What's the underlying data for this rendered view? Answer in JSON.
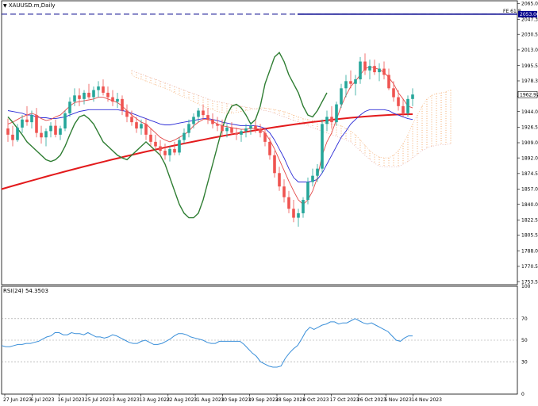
{
  "window": {
    "symbol_title": "XAUUSD.m,Daily",
    "rsi_title": "RSI(24) 54.3503"
  },
  "chart_data": {
    "type": "candlestick",
    "symbol": "XAUUSD.m",
    "timeframe": "Daily",
    "price_axis": {
      "range": [
        1750,
        2068
      ],
      "ticks": [
        "2065.00",
        "2047.30",
        "2030.50",
        "2013.00",
        "1995.50",
        "1978.30",
        "1961.00",
        "1944.00",
        "1926.50",
        "1909.00",
        "1892.00",
        "1874.50",
        "1857.00",
        "1840.00",
        "1822.50",
        "1805.50",
        "1788.00",
        "1770.50",
        "1753.50"
      ]
    },
    "date_axis": {
      "ticks": [
        "27 Jun 2023",
        "6 Jul 2023",
        "16 Jul 2023",
        "25 Jul 2023",
        "3 Aug 2023",
        "13 Aug 2023",
        "22 Aug 2023",
        "31 Aug 2023",
        "10 Sep 2023",
        "19 Sep 2023",
        "28 Sep 2023",
        "8 Oct 2023",
        "17 Oct 2023",
        "26 Oct 2023",
        "5 Nov 2023",
        "14 Nov 2023"
      ]
    },
    "current_price": "1962.97",
    "fibo_label": "FE 61.8",
    "fibo_price": "2053.00",
    "fibo_value": 2053.0,
    "candles": [
      [
        1925,
        1936,
        1910,
        1918
      ],
      [
        1918,
        1928,
        1905,
        1912
      ],
      [
        1912,
        1930,
        1910,
        1926
      ],
      [
        1926,
        1940,
        1920,
        1935
      ],
      [
        1935,
        1950,
        1928,
        1932
      ],
      [
        1932,
        1945,
        1925,
        1940
      ],
      [
        1940,
        1948,
        1915,
        1920
      ],
      [
        1920,
        1928,
        1908,
        1915
      ],
      [
        1915,
        1925,
        1905,
        1922
      ],
      [
        1922,
        1932,
        1915,
        1928
      ],
      [
        1928,
        1935,
        1915,
        1918
      ],
      [
        1918,
        1928,
        1912,
        1925
      ],
      [
        1925,
        1945,
        1922,
        1942
      ],
      [
        1942,
        1960,
        1938,
        1955
      ],
      [
        1955,
        1970,
        1950,
        1962
      ],
      [
        1962,
        1970,
        1950,
        1958
      ],
      [
        1958,
        1968,
        1952,
        1965
      ],
      [
        1965,
        1975,
        1958,
        1960
      ],
      [
        1960,
        1972,
        1955,
        1968
      ],
      [
        1968,
        1978,
        1960,
        1972
      ],
      [
        1972,
        1980,
        1962,
        1965
      ],
      [
        1965,
        1972,
        1955,
        1960
      ],
      [
        1960,
        1968,
        1950,
        1955
      ],
      [
        1955,
        1965,
        1948,
        1958
      ],
      [
        1958,
        1962,
        1940,
        1945
      ],
      [
        1945,
        1952,
        1932,
        1938
      ],
      [
        1938,
        1945,
        1928,
        1932
      ],
      [
        1932,
        1938,
        1920,
        1925
      ],
      [
        1925,
        1935,
        1918,
        1930
      ],
      [
        1930,
        1936,
        1912,
        1918
      ],
      [
        1918,
        1925,
        1905,
        1910
      ],
      [
        1910,
        1918,
        1900,
        1905
      ],
      [
        1905,
        1912,
        1895,
        1900
      ],
      [
        1900,
        1908,
        1890,
        1895
      ],
      [
        1895,
        1905,
        1888,
        1902
      ],
      [
        1902,
        1910,
        1895,
        1898
      ],
      [
        1898,
        1915,
        1895,
        1912
      ],
      [
        1912,
        1925,
        1908,
        1920
      ],
      [
        1920,
        1935,
        1915,
        1930
      ],
      [
        1930,
        1942,
        1925,
        1938
      ],
      [
        1938,
        1948,
        1932,
        1945
      ],
      [
        1945,
        1952,
        1935,
        1940
      ],
      [
        1940,
        1948,
        1930,
        1935
      ],
      [
        1935,
        1942,
        1925,
        1930
      ],
      [
        1930,
        1938,
        1922,
        1928
      ],
      [
        1928,
        1935,
        1918,
        1922
      ],
      [
        1922,
        1930,
        1915,
        1926
      ],
      [
        1926,
        1932,
        1918,
        1920
      ],
      [
        1920,
        1926,
        1912,
        1918
      ],
      [
        1918,
        1924,
        1910,
        1922
      ],
      [
        1922,
        1930,
        1915,
        1925
      ],
      [
        1925,
        1932,
        1918,
        1928
      ],
      [
        1928,
        1934,
        1920,
        1924
      ],
      [
        1924,
        1930,
        1915,
        1920
      ],
      [
        1920,
        1926,
        1905,
        1910
      ],
      [
        1910,
        1915,
        1890,
        1895
      ],
      [
        1895,
        1900,
        1870,
        1875
      ],
      [
        1875,
        1882,
        1855,
        1860
      ],
      [
        1860,
        1868,
        1842,
        1848
      ],
      [
        1848,
        1855,
        1830,
        1835
      ],
      [
        1835,
        1845,
        1820,
        1825
      ],
      [
        1825,
        1835,
        1815,
        1830
      ],
      [
        1830,
        1848,
        1825,
        1845
      ],
      [
        1845,
        1870,
        1840,
        1865
      ],
      [
        1865,
        1880,
        1860,
        1872
      ],
      [
        1872,
        1885,
        1865,
        1880
      ],
      [
        1880,
        1935,
        1875,
        1930
      ],
      [
        1930,
        1945,
        1922,
        1938
      ],
      [
        1938,
        1950,
        1925,
        1932
      ],
      [
        1932,
        1955,
        1928,
        1952
      ],
      [
        1952,
        1975,
        1948,
        1970
      ],
      [
        1970,
        1985,
        1960,
        1978
      ],
      [
        1978,
        1990,
        1970,
        1975
      ],
      [
        1975,
        1985,
        1962,
        1980
      ],
      [
        1980,
        2005,
        1975,
        2000
      ],
      [
        2000,
        2009,
        1985,
        1990
      ],
      [
        1990,
        2002,
        1980,
        1995
      ],
      [
        1995,
        2002,
        1985,
        1988
      ],
      [
        1988,
        1998,
        1978,
        1992
      ],
      [
        1992,
        2000,
        1980,
        1985
      ],
      [
        1985,
        1992,
        1968,
        1970
      ],
      [
        1970,
        1978,
        1955,
        1960
      ],
      [
        1960,
        1968,
        1945,
        1950
      ],
      [
        1950,
        1958,
        1938,
        1942
      ],
      [
        1942,
        1962,
        1938,
        1958
      ],
      [
        1958,
        1970,
        1950,
        1963
      ]
    ],
    "ichimoku": {
      "tenkan": [
        1930,
        1932,
        1935,
        1938,
        1940,
        1942,
        1940,
        1936,
        1934,
        1935,
        1938,
        1940,
        1945,
        1950,
        1954,
        1955,
        1956,
        1957,
        1958,
        1960,
        1960,
        1958,
        1956,
        1954,
        1950,
        1945,
        1940,
        1936,
        1932,
        1930,
        1925,
        1920,
        1915,
        1912,
        1910,
        1912,
        1915,
        1918,
        1922,
        1928,
        1932,
        1935,
        1935,
        1933,
        1930,
        1928,
        1927,
        1926,
        1925,
        1924,
        1924,
        1925,
        1925,
        1924,
        1920,
        1912,
        1902,
        1890,
        1878,
        1866,
        1855,
        1845,
        1840,
        1845,
        1855,
        1870,
        1895,
        1910,
        1920,
        1935,
        1950,
        1962,
        1972,
        1978,
        1985,
        1992,
        1994,
        1993,
        1991,
        1988,
        1982,
        1975,
        1965,
        1958,
        1950,
        1948
      ],
      "kijun": [
        1945,
        1944,
        1943,
        1942,
        1940,
        1940,
        1938,
        1937,
        1937,
        1936,
        1936,
        1937,
        1938,
        1940,
        1942,
        1944,
        1945,
        1946,
        1946,
        1946,
        1946,
        1946,
        1946,
        1946,
        1945,
        1944,
        1942,
        1940,
        1938,
        1936,
        1934,
        1932,
        1930,
        1929,
        1929,
        1930,
        1931,
        1932,
        1933,
        1934,
        1935,
        1936,
        1936,
        1935,
        1934,
        1932,
        1931,
        1930,
        1929,
        1928,
        1928,
        1928,
        1928,
        1927,
        1925,
        1920,
        1912,
        1902,
        1892,
        1880,
        1870,
        1865,
        1865,
        1865,
        1866,
        1868,
        1875,
        1885,
        1895,
        1905,
        1915,
        1922,
        1930,
        1935,
        1940,
        1944,
        1946,
        1946,
        1946,
        1946,
        1945,
        1942,
        1940,
        1938,
        1936,
        1935
      ],
      "senkou_a": [
        1985,
        1982,
        1980,
        1978,
        1976,
        1974,
        1972,
        1970,
        1968,
        1965,
        1962,
        1960,
        1958,
        1955,
        1952,
        1950,
        1948,
        1946,
        1944,
        1943,
        1942,
        1942,
        1943,
        1944,
        1945,
        1946,
        1947,
        1948,
        1948,
        1947,
        1946,
        1945,
        1944,
        1942,
        1940,
        1938,
        1936,
        1935,
        1934,
        1933,
        1932,
        1931,
        1930,
        1929,
        1928,
        1925,
        1922,
        1918,
        1912,
        1906,
        1900,
        1896,
        1893,
        1892,
        1892,
        1895,
        1900,
        1908,
        1918,
        1930,
        1940,
        1950,
        1958,
        1962,
        1964,
        1965,
        1966,
        1968
      ],
      "senkou_b": [
        1990,
        1988,
        1986,
        1984,
        1982,
        1980,
        1978,
        1976,
        1974,
        1972,
        1970,
        1968,
        1966,
        1964,
        1962,
        1960,
        1958,
        1956,
        1955,
        1954,
        1953,
        1952,
        1951,
        1950,
        1949,
        1948,
        1947,
        1946,
        1945,
        1944,
        1942,
        1940,
        1938,
        1936,
        1934,
        1932,
        1930,
        1928,
        1926,
        1924,
        1922,
        1920,
        1918,
        1916,
        1914,
        1912,
        1910,
        1905,
        1900,
        1895,
        1890,
        1886,
        1883,
        1882,
        1882,
        1882,
        1882,
        1885,
        1888,
        1892,
        1896,
        1900,
        1903,
        1905,
        1906,
        1907,
        1907,
        1908
      ],
      "chikou": [
        1938,
        1932,
        1925,
        1918,
        1910,
        1905,
        1900,
        1895,
        1890,
        1888,
        1890,
        1895,
        1905,
        1918,
        1930,
        1938,
        1940,
        1936,
        1930,
        1920,
        1910,
        1905,
        1900,
        1895,
        1892,
        1890,
        1895,
        1900,
        1905,
        1910,
        1905,
        1900,
        1895,
        1885,
        1870,
        1855,
        1840,
        1830,
        1825,
        1825,
        1830,
        1845,
        1865,
        1885,
        1905,
        1925,
        1940,
        1950,
        1952,
        1948,
        1940,
        1930,
        1935,
        1950,
        1975,
        1990,
        2005,
        2010,
        2000,
        1985,
        1975,
        1965,
        1950,
        1940,
        1938,
        1945,
        1955,
        1965
      ]
    },
    "sma200": {
      "start": 1857,
      "end": 1941
    },
    "rsi": {
      "name": "RSI(24)",
      "last": 54.3503,
      "range": [
        0,
        100
      ],
      "levels": [
        30,
        50,
        70
      ],
      "tick_labels": [
        "100",
        "70",
        "50",
        "30",
        "0"
      ],
      "values": [
        45,
        44,
        44,
        45,
        46,
        46,
        47,
        47,
        48,
        49,
        51,
        53,
        54,
        57,
        57,
        55,
        55,
        57,
        56,
        56,
        55,
        57,
        55,
        53,
        53,
        52,
        53,
        55,
        54,
        52,
        50,
        48,
        47,
        47,
        49,
        50,
        48,
        46,
        46,
        47,
        49,
        51,
        54,
        56,
        56,
        55,
        53,
        52,
        51,
        50,
        48,
        47,
        47,
        49,
        49,
        49,
        49,
        49,
        49,
        46,
        42,
        38,
        35,
        30,
        28,
        26,
        25,
        25,
        26,
        33,
        38,
        42,
        45,
        51,
        58,
        62,
        60,
        62,
        64,
        65,
        67,
        67,
        65,
        66,
        66,
        68,
        70,
        68,
        66,
        65,
        66,
        64,
        62,
        60,
        58,
        54,
        50,
        49,
        52,
        54,
        54
      ]
    }
  }
}
